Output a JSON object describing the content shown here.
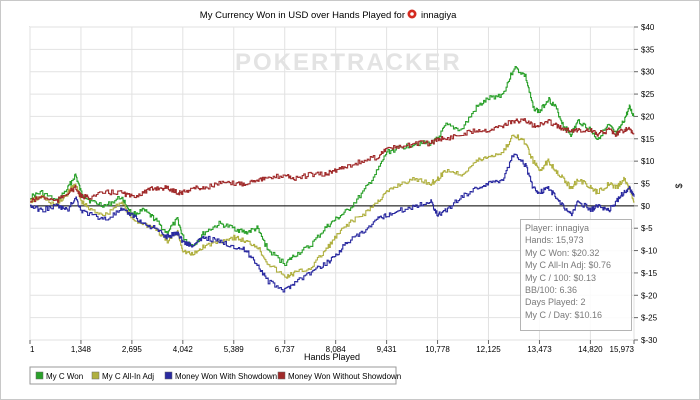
{
  "chart_data": {
    "type": "line",
    "title": "My Currency Won in USD over Hands Played for",
    "player_name": "innagiya",
    "watermark": "POKERTRACKER",
    "xlabel": "Hands Played",
    "ylabel": "$",
    "xlim": [
      1,
      15973
    ],
    "ylim": [
      -30,
      40
    ],
    "x_ticks": [
      1,
      1348,
      2695,
      4042,
      5389,
      6737,
      8084,
      9431,
      10778,
      12125,
      13473,
      14820,
      15973
    ],
    "x_tick_labels": [
      "1",
      "1,348",
      "2,695",
      "4,042",
      "5,389",
      "6,737",
      "8,084",
      "9,431",
      "10,778",
      "12,125",
      "13,473",
      "14,820",
      "15,973"
    ],
    "y_ticks": [
      40,
      35,
      30,
      25,
      20,
      15,
      10,
      5,
      0,
      -5,
      -10,
      -15,
      -20,
      -25,
      -30
    ],
    "y_tick_labels": [
      "$40",
      "$35",
      "$30",
      "$25",
      "$20",
      "$15",
      "$10",
      "$5",
      "$0",
      "$-5",
      "$-10",
      "$-15",
      "$-20",
      "$-25",
      "$-30"
    ],
    "grid": true,
    "legend_position": "bottom",
    "series": [
      {
        "name": "My C Won",
        "color": "#2aa02a",
        "x": [
          1,
          300,
          700,
          1000,
          1200,
          1348,
          1600,
          2000,
          2400,
          2695,
          3000,
          3300,
          3600,
          3900,
          4042,
          4300,
          4600,
          5000,
          5389,
          5700,
          6000,
          6300,
          6737,
          7000,
          7400,
          7800,
          8084,
          8400,
          8800,
          9200,
          9431,
          9800,
          10200,
          10600,
          10778,
          11000,
          11400,
          11800,
          12125,
          12500,
          12800,
          13100,
          13300,
          13473,
          13700,
          13900,
          14100,
          14300,
          14500,
          14820,
          15000,
          15300,
          15500,
          15700,
          15850,
          15973
        ],
        "y": [
          2,
          3,
          1,
          4,
          7,
          3,
          1,
          0,
          2,
          -2,
          -1,
          -3,
          -6,
          -3,
          -7,
          -9,
          -6,
          -4,
          -5,
          -6,
          -5,
          -10,
          -13,
          -11,
          -9,
          -5,
          -3,
          -1,
          3,
          8,
          12,
          13,
          14,
          14,
          15,
          18,
          17,
          22,
          24,
          25,
          31,
          29,
          22,
          21,
          24,
          22,
          18,
          16,
          19,
          17,
          15,
          18,
          16,
          19,
          22,
          20
        ]
      },
      {
        "name": "My C All-In Adj",
        "color": "#b0b040",
        "x": [
          1,
          300,
          700,
          1000,
          1200,
          1348,
          1600,
          2000,
          2400,
          2695,
          3000,
          3300,
          3600,
          3900,
          4042,
          4300,
          4600,
          5000,
          5389,
          5700,
          6000,
          6300,
          6737,
          7000,
          7400,
          7800,
          8084,
          8400,
          8800,
          9200,
          9431,
          9800,
          10200,
          10600,
          10778,
          11000,
          11400,
          11800,
          12125,
          12500,
          12800,
          13100,
          13300,
          13473,
          13700,
          13900,
          14100,
          14300,
          14500,
          14820,
          15000,
          15300,
          15500,
          15700,
          15850,
          15973
        ],
        "y": [
          1,
          2,
          0,
          3,
          5,
          1,
          -1,
          -2,
          1,
          -3,
          -4,
          -5,
          -8,
          -6,
          -10,
          -11,
          -9,
          -8,
          -7,
          -8,
          -9,
          -13,
          -16,
          -15,
          -14,
          -10,
          -7,
          -4,
          -2,
          1,
          3,
          5,
          6,
          5,
          6,
          8,
          7,
          10,
          11,
          12,
          16,
          14,
          10,
          8,
          10,
          8,
          6,
          4,
          6,
          4,
          3,
          5,
          4,
          6,
          4,
          1
        ]
      },
      {
        "name": "Money Won With Showdown",
        "color": "#2a2aa0",
        "x": [
          1,
          300,
          700,
          1000,
          1200,
          1348,
          1600,
          2000,
          2400,
          2695,
          3000,
          3300,
          3600,
          3900,
          4042,
          4300,
          4600,
          5000,
          5389,
          5700,
          6000,
          6300,
          6737,
          7000,
          7400,
          7800,
          8084,
          8400,
          8800,
          9200,
          9431,
          9800,
          10200,
          10600,
          10778,
          11000,
          11400,
          11800,
          12125,
          12500,
          12800,
          13100,
          13300,
          13473,
          13700,
          13900,
          14100,
          14300,
          14500,
          14820,
          15000,
          15300,
          15500,
          15700,
          15850,
          15973
        ],
        "y": [
          0,
          -1,
          0,
          -1,
          2,
          -1,
          -2,
          -3,
          -1,
          -2,
          -4,
          -5,
          -7,
          -6,
          -8,
          -9,
          -7,
          -8,
          -9,
          -10,
          -13,
          -17,
          -19,
          -17,
          -15,
          -13,
          -11,
          -8,
          -6,
          -3,
          -2,
          -1,
          0,
          1,
          -2,
          -1,
          2,
          4,
          5,
          6,
          12,
          9,
          4,
          3,
          4,
          2,
          0,
          -2,
          1,
          -1,
          0,
          -1,
          1,
          3,
          4,
          2
        ]
      },
      {
        "name": "Money Won Without Showdown",
        "color": "#a02a2a",
        "x": [
          1,
          300,
          700,
          1000,
          1200,
          1348,
          1600,
          2000,
          2400,
          2695,
          3000,
          3300,
          3600,
          3900,
          4042,
          4300,
          4600,
          5000,
          5389,
          5700,
          6000,
          6300,
          6737,
          7000,
          7400,
          7800,
          8084,
          8400,
          8800,
          9200,
          9431,
          9800,
          10200,
          10600,
          10778,
          11000,
          11400,
          11800,
          12125,
          12500,
          12800,
          13100,
          13300,
          13473,
          13700,
          13900,
          14100,
          14300,
          14500,
          14820,
          15000,
          15300,
          15500,
          15700,
          15850,
          15973
        ],
        "y": [
          1,
          2,
          1,
          3,
          4,
          2,
          2,
          3,
          3,
          2,
          3,
          4,
          4,
          3,
          3,
          4,
          4,
          5,
          5,
          5,
          6,
          6,
          7,
          6,
          7,
          7,
          8,
          9,
          10,
          11,
          13,
          13,
          14,
          14,
          15,
          15,
          16,
          17,
          17,
          18,
          19,
          19,
          18,
          18,
          19,
          18,
          17,
          17,
          17,
          17,
          16,
          17,
          16,
          17,
          17,
          16
        ]
      }
    ],
    "tooltip": {
      "player": "Player: innagiya",
      "hands": "Hands: 15,973",
      "won": "My C Won: $20.32",
      "allin_adj": "My C All-In Adj: $0.76",
      "per_100": "My C / 100: $0.13",
      "bb_100": "BB/100: 6.36",
      "days": "Days Played: 2",
      "per_day": "My C / Day: $10.16"
    }
  }
}
